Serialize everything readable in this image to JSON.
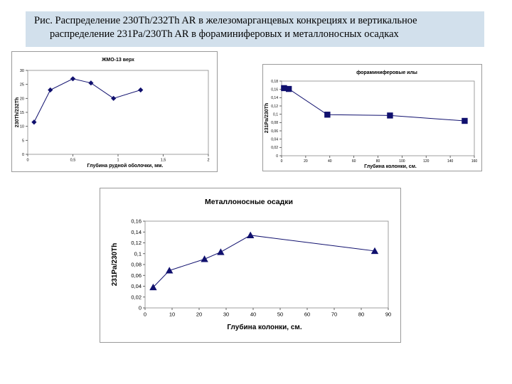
{
  "caption": {
    "line1": "Рис. Распределение 230Th/232Th AR в железомарганцевых конкрециях и вертикальное",
    "line2": "распределение 231Pa/230Th AR в фораминиферовых и металлоносных осадках"
  },
  "chart_data": [
    {
      "type": "line",
      "title": "ЖМО-13 верх",
      "xlabel": "Глубина рудной оболочки, мм.",
      "ylabel": "230Th/232Th",
      "xlim": [
        0,
        2
      ],
      "ylim": [
        0,
        30
      ],
      "x_ticks": [
        "0",
        "0,5",
        "1",
        "1,5",
        "2"
      ],
      "y_ticks": [
        "0",
        "5",
        "10",
        "15",
        "20",
        "25",
        "30"
      ],
      "marker": "diamond",
      "series": [
        {
          "x": [
            0.07,
            0.25,
            0.5,
            0.7,
            0.95,
            1.25
          ],
          "y": [
            11.5,
            23,
            27,
            25.5,
            20,
            23
          ]
        }
      ]
    },
    {
      "type": "line",
      "title": "фораминиферовые илы",
      "xlabel": "Глубина колонки, см.",
      "ylabel": "231Pa/230Th",
      "xlim": [
        0,
        160
      ],
      "ylim": [
        0,
        0.18
      ],
      "x_ticks": [
        "0",
        "20",
        "40",
        "60",
        "80",
        "100",
        "120",
        "140",
        "160"
      ],
      "y_ticks": [
        "0",
        "0,02",
        "0,04",
        "0,06",
        "0,08",
        "0,1",
        "0,12",
        "0,14",
        "0,16",
        "0,18"
      ],
      "marker": "square",
      "series": [
        {
          "x": [
            2,
            6,
            38,
            90,
            152
          ],
          "y": [
            0.163,
            0.161,
            0.099,
            0.097,
            0.084
          ]
        }
      ]
    },
    {
      "type": "line",
      "title": "Металлоносные осадки",
      "xlabel": "Глубина колонки, см.",
      "ylabel": "231Pa/230Th",
      "xlim": [
        0,
        90
      ],
      "ylim": [
        0,
        0.16
      ],
      "x_ticks": [
        "0",
        "10",
        "20",
        "30",
        "40",
        "50",
        "60",
        "70",
        "80",
        "90"
      ],
      "y_ticks": [
        "0",
        "0,02",
        "0,04",
        "0,06",
        "0,08",
        "0,1",
        "0,12",
        "0,14",
        "0,16"
      ],
      "marker": "triangle",
      "series": [
        {
          "x": [
            3,
            9,
            22,
            28,
            39,
            85
          ],
          "y": [
            0.038,
            0.069,
            0.09,
            0.103,
            0.134,
            0.105
          ]
        }
      ]
    }
  ]
}
